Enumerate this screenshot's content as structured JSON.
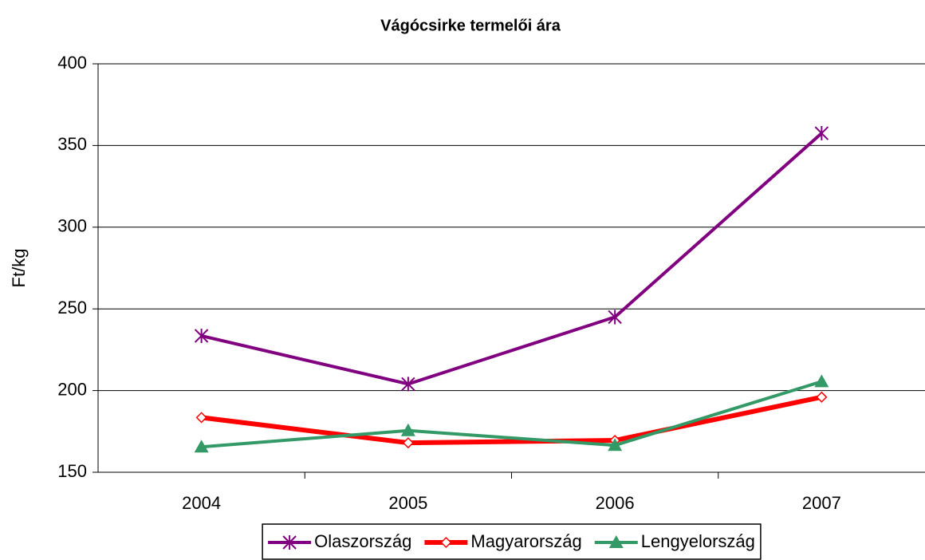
{
  "chart_data": {
    "type": "line",
    "title": "Vágócsirke termelői ára",
    "y_label": "Ft/kg",
    "categories": [
      "2004",
      "2005",
      "2006",
      "2007"
    ],
    "series": [
      {
        "name": "Olaszország",
        "color": "#800080",
        "marker": "asterisk",
        "values": [
          233.5,
          204,
          245,
          357.5
        ]
      },
      {
        "name": "Magyarország",
        "color": "#ff0000",
        "marker": "diamond",
        "values": [
          183.5,
          168,
          169.5,
          196
        ]
      },
      {
        "name": "Lengyelország",
        "color": "#339966",
        "marker": "triangle",
        "values": [
          165.5,
          175.5,
          166.5,
          205.5
        ]
      }
    ],
    "ylim": [
      150,
      400
    ],
    "yticks": [
      150,
      200,
      250,
      300,
      350,
      400
    ],
    "grid": true,
    "legend": "bottom"
  }
}
